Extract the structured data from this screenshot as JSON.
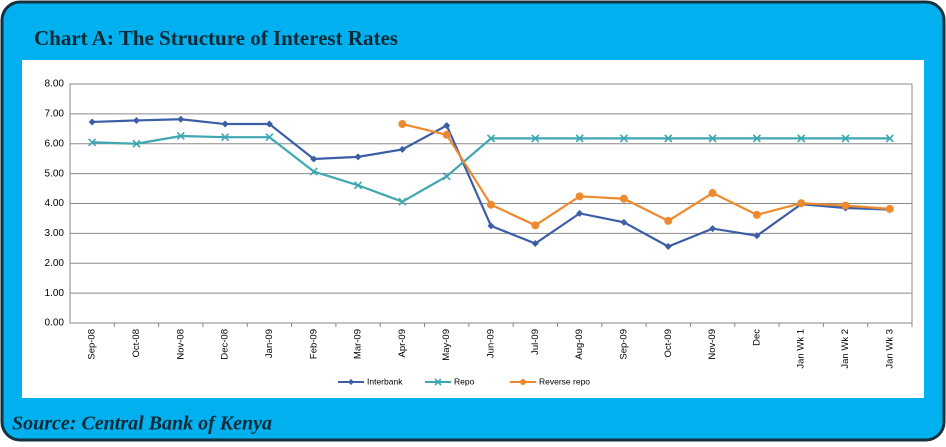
{
  "chart_data": {
    "type": "line",
    "title": "Chart  A:  The Structure of Interest Rates",
    "source": "Source:  Central Bank of Kenya",
    "categories": [
      "Sep-08",
      "Oct-08",
      "Nov-08",
      "Dec-08",
      "Jan-09",
      "Feb-09",
      "Mar-09",
      "Apr-09",
      "May-09",
      "Jun-09",
      "Jul-09",
      "Aug-09",
      "Sep-09",
      "Oct-09",
      "Nov-09",
      "Dec",
      "Jan Wk 1",
      "Jan Wk 2",
      "Jan Wk 3"
    ],
    "series": [
      {
        "name": "Interbank",
        "color": "#3c5ea6",
        "marker": "diamond",
        "values": [
          6.73,
          6.78,
          6.82,
          6.66,
          6.66,
          5.49,
          5.56,
          5.81,
          6.61,
          3.25,
          2.66,
          3.67,
          3.37,
          2.56,
          3.16,
          2.92,
          3.98,
          3.85,
          3.8
        ]
      },
      {
        "name": "Repo",
        "color": "#3fa7b1",
        "marker": "x",
        "values": [
          6.05,
          6.0,
          6.26,
          6.22,
          6.22,
          5.07,
          4.61,
          4.06,
          4.91,
          6.18,
          6.18,
          6.18,
          6.18,
          6.18,
          6.18,
          6.18,
          6.18,
          6.18,
          6.18
        ]
      },
      {
        "name": "Reverse repo",
        "color": "#ee8a2e",
        "marker": "circle",
        "values": [
          null,
          null,
          null,
          null,
          null,
          null,
          null,
          6.66,
          6.3,
          3.96,
          3.27,
          4.24,
          4.16,
          3.42,
          4.35,
          3.62,
          4.01,
          3.93,
          3.82
        ]
      }
    ],
    "ylim": [
      0,
      8
    ],
    "yticks": [
      {
        "value": 0,
        "label": "0.00"
      },
      {
        "value": 1,
        "label": "1.00"
      },
      {
        "value": 2,
        "label": "2.00"
      },
      {
        "value": 3,
        "label": "3.00"
      },
      {
        "value": 4,
        "label": "4.00"
      },
      {
        "value": 5,
        "label": "5.00"
      },
      {
        "value": 6,
        "label": "6.00"
      },
      {
        "value": 7,
        "label": "7.00"
      },
      {
        "value": 8,
        "label": "8.00"
      }
    ],
    "grid": true,
    "legend": "bottom"
  }
}
